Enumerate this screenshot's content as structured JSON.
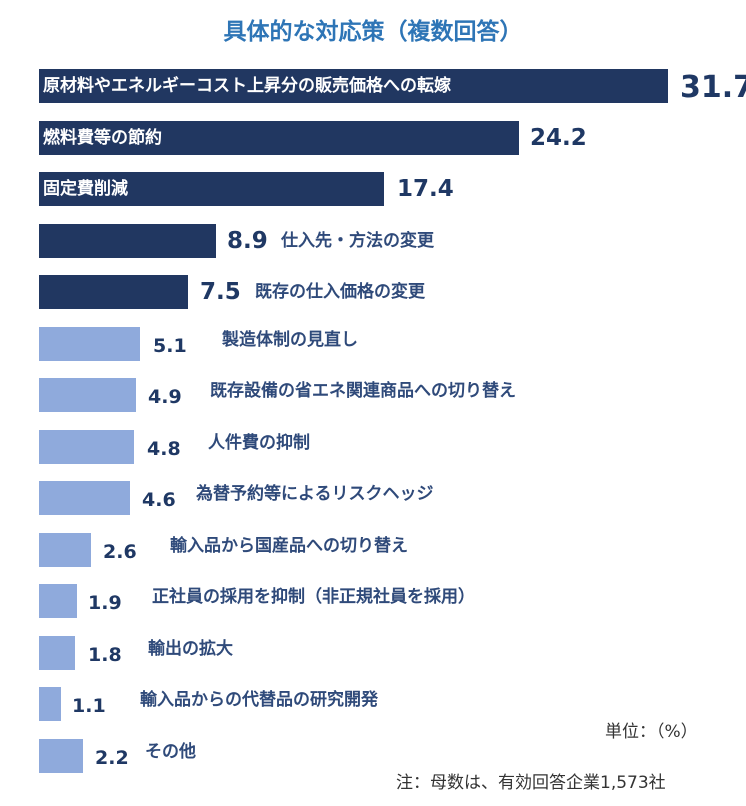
{
  "chart_data": {
    "type": "bar",
    "orientation": "horizontal",
    "title": "具体的な対応策（複数回答）",
    "categories": [
      "原材料やエネルギーコスト上昇分の販売価格への転嫁",
      "燃料費等の節約",
      "固定費削減",
      "仕入先・方法の変更",
      "既存の仕入価格の変更",
      "製造体制の見直し",
      "既存設備の省エネ関連商品への切り替え",
      "人件費の抑制",
      "為替予約等によるリスクヘッジ",
      "輸入品から国産品への切り替え",
      "正社員の採用を抑制（非正規社員を採用）",
      "輸出の拡大",
      "輸入品からの代替品の研究開発",
      "その他"
    ],
    "values": [
      31.7,
      24.2,
      17.4,
      8.9,
      7.5,
      5.1,
      4.9,
      4.8,
      4.6,
      2.6,
      1.9,
      1.8,
      1.1,
      2.2
    ],
    "value_labels": [
      "31.7",
      "24.2",
      "17.4",
      "8.9",
      "7.5",
      "5.1",
      "4.9",
      "4.8",
      "4.6",
      "2.6",
      "1.9",
      "1.8",
      "1.1",
      "2.2"
    ],
    "highlight_count": 5,
    "colors": {
      "highlight": "#213761",
      "normal": "#8faadc",
      "title": "#2e75b6"
    },
    "unit_label": "単位：（%）",
    "note": "注：母数は、有効回答企業1,573社",
    "grid": false,
    "legend": "none"
  }
}
